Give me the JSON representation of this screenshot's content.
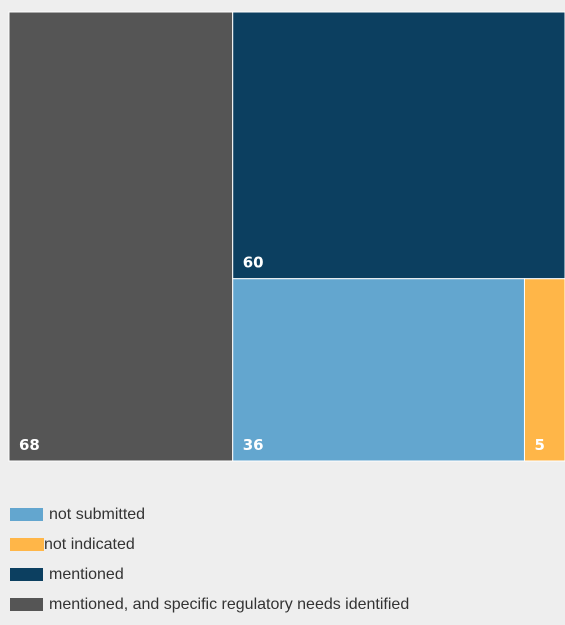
{
  "chart_data": {
    "type": "treemap",
    "categories": [
      "mentioned, and specific regulatory needs identified",
      "mentioned",
      "not submitted",
      "not indicated"
    ],
    "values": [
      68,
      60,
      36,
      5
    ],
    "colors": {
      "not submitted": "#63a6cf",
      "not indicated": "#ffb648",
      "mentioned": "#0c3f60",
      "mentioned, and specific regulatory needs identified": "#555555"
    },
    "title": "",
    "legend_position": "bottom-left"
  },
  "tiles": [
    {
      "category": "mentioned, and specific regulatory needs identified",
      "value": 68,
      "label": "68"
    },
    {
      "category": "mentioned",
      "value": 60,
      "label": "60"
    },
    {
      "category": "not submitted",
      "value": 36,
      "label": "36"
    },
    {
      "category": "not indicated",
      "value": 5,
      "label": "5"
    }
  ],
  "legend": {
    "items": [
      {
        "label": "not submitted",
        "color": "#63a6cf"
      },
      {
        "label": "not indicated",
        "color": "#ffb648"
      },
      {
        "label": "mentioned",
        "color": "#0c3f60"
      },
      {
        "label": "mentioned, and specific regulatory needs identified",
        "color": "#555555"
      }
    ]
  }
}
